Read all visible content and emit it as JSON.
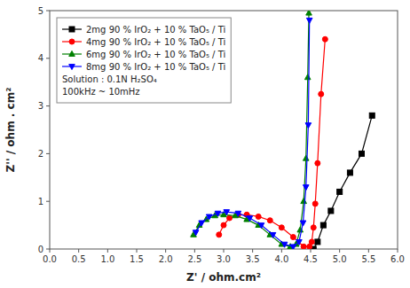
{
  "chart_data": {
    "type": "line",
    "xlabel": "Z' / ohm.cm²",
    "ylabel": "Z'' / ohm . cm²",
    "xlim": [
      0.0,
      6.0
    ],
    "ylim": [
      0.0,
      5.0
    ],
    "xticks": [
      {
        "value": 0.0,
        "label": "0.0"
      },
      0.5,
      {
        "value": 1.0,
        "label": "1.0"
      },
      1.5,
      {
        "value": 2.0,
        "label": "2.0"
      },
      2.5,
      {
        "value": 3.0,
        "label": "3.0"
      },
      3.5,
      {
        "value": 4.0,
        "label": "4.0"
      },
      4.5,
      {
        "value": 5.0,
        "label": "5.0"
      },
      5.5,
      {
        "value": 6.0,
        "label": "6.0"
      }
    ],
    "yticks": [
      0,
      1,
      2,
      3,
      4,
      5
    ],
    "annotations": [
      "Solution : 0.1N H₂SO₄",
      "100kHz ~ 10mHz"
    ],
    "legend": "upper left",
    "grid": false,
    "series": [
      {
        "name": "2mg 90 % IrO₂ + 10 % TaO₅ / Ti",
        "color": "black",
        "marker": "square",
        "x": [
          4.55,
          4.62,
          4.72,
          4.85,
          5.0,
          5.18,
          5.38,
          5.56
        ],
        "values": [
          0.0,
          0.15,
          0.5,
          0.8,
          1.2,
          1.6,
          2.0,
          2.8
        ]
      },
      {
        "name": "4mg 90 % IrO₂ + 10 % TaO₅ / Ti",
        "color": "red",
        "marker": "circle",
        "x": [
          2.92,
          3.0,
          3.1,
          3.25,
          3.4,
          3.6,
          3.8,
          4.0,
          4.2,
          4.38,
          4.48,
          4.52,
          4.55,
          4.58,
          4.62,
          4.68,
          4.75
        ],
        "values": [
          0.3,
          0.5,
          0.65,
          0.72,
          0.72,
          0.68,
          0.6,
          0.45,
          0.25,
          0.05,
          0.05,
          0.15,
          0.45,
          0.95,
          1.8,
          3.25,
          4.4
        ]
      },
      {
        "name": "6mg 90 % IrO₂ + 10 % TaO₅ / Ti",
        "color": "green",
        "marker": "triangle-up",
        "x": [
          2.48,
          2.58,
          2.7,
          2.85,
          3.0,
          3.2,
          3.4,
          3.6,
          3.8,
          4.0,
          4.15,
          4.25,
          4.32,
          4.38,
          4.42,
          4.45,
          4.47
        ],
        "values": [
          0.3,
          0.5,
          0.62,
          0.7,
          0.72,
          0.7,
          0.62,
          0.5,
          0.3,
          0.1,
          0.05,
          0.1,
          0.4,
          1.0,
          1.9,
          3.6,
          4.95
        ]
      },
      {
        "name": "8mg 90 % IrO₂ + 10 % TaO₅ / Ti",
        "color": "blue",
        "marker": "triangle-down",
        "x": [
          2.52,
          2.62,
          2.75,
          2.9,
          3.05,
          3.25,
          3.45,
          3.65,
          3.85,
          4.05,
          4.2,
          4.3,
          4.37,
          4.42,
          4.46,
          4.48
        ],
        "values": [
          0.35,
          0.55,
          0.68,
          0.75,
          0.78,
          0.75,
          0.65,
          0.5,
          0.3,
          0.1,
          0.05,
          0.15,
          0.55,
          1.3,
          2.6,
          4.8
        ]
      }
    ]
  }
}
